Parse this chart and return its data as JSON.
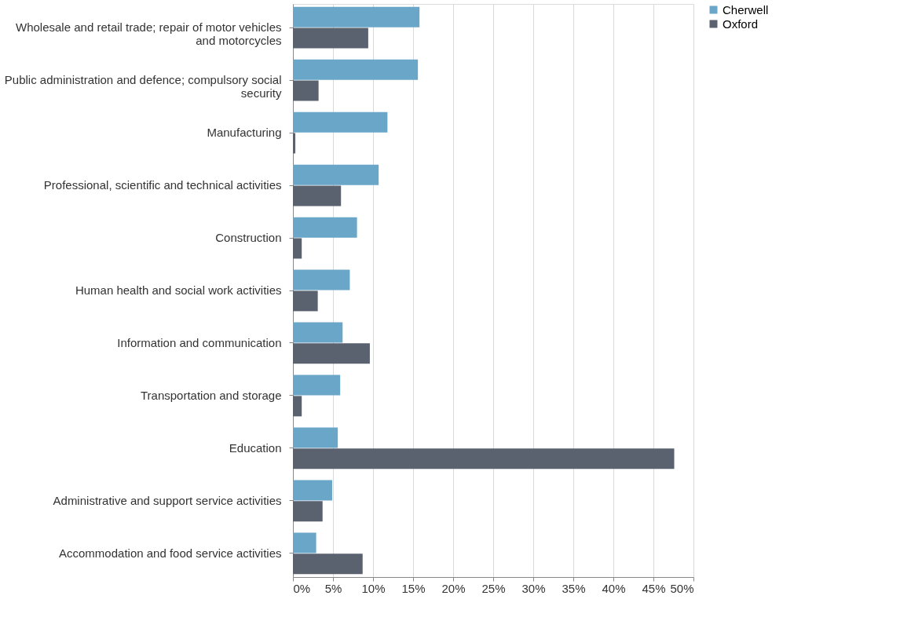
{
  "chart_data": {
    "type": "bar",
    "orientation": "horizontal",
    "categories": [
      "Wholesale and retail trade; repair of motor vehicles and motorcycles",
      "Public administration and defence; compulsory social security",
      "Manufacturing",
      "Professional, scientific and technical activities",
      "Construction",
      "Human health and social work activities",
      "Information and communication",
      "Transportation and storage",
      "Education",
      "Administrative and support service activities",
      "Accommodation and food service activities"
    ],
    "series": [
      {
        "name": "Cherwell",
        "color": "#6aa6c8",
        "values": [
          15.8,
          15.6,
          11.8,
          10.7,
          8.0,
          7.1,
          6.2,
          5.9,
          5.6,
          4.9,
          2.9
        ]
      },
      {
        "name": "Oxford",
        "color": "#5a6270",
        "values": [
          9.4,
          3.2,
          0.3,
          6.0,
          1.1,
          3.1,
          9.6,
          1.1,
          47.6,
          3.7,
          8.7
        ]
      }
    ],
    "xlim": [
      0,
      50
    ],
    "xticks": [
      {
        "value": 0,
        "label": "0%"
      },
      {
        "value": 5,
        "label": "5%"
      },
      {
        "value": 10,
        "label": "10%"
      },
      {
        "value": 15,
        "label": "15%"
      },
      {
        "value": 20,
        "label": "20%"
      },
      {
        "value": 25,
        "label": "25%"
      },
      {
        "value": 30,
        "label": "30%"
      },
      {
        "value": 35,
        "label": "35%"
      },
      {
        "value": 40,
        "label": "40%"
      },
      {
        "value": 45,
        "label": "45%"
      },
      {
        "value": 50,
        "label": "50%"
      }
    ],
    "grid": "x",
    "legend": "right"
  }
}
